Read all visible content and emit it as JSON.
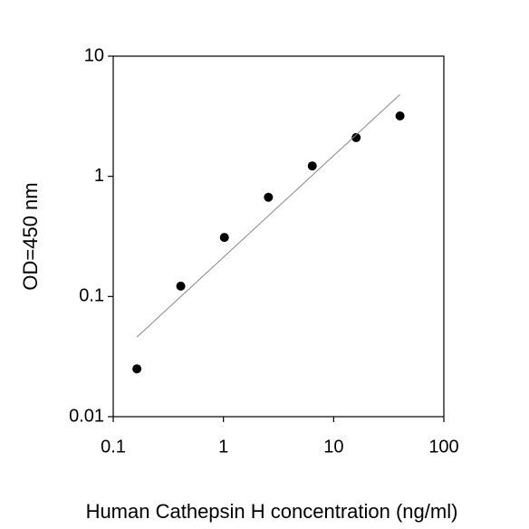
{
  "chart_data": {
    "type": "scatter",
    "xlabel": "Human Cathepsin H concentration (ng/ml)",
    "ylabel": "OD=450 nm",
    "xscale": "log",
    "yscale": "log",
    "xlim": [
      0.1,
      100
    ],
    "ylim": [
      0.01,
      10
    ],
    "xticks": [
      0.1,
      1,
      10,
      100
    ],
    "yticks": [
      0.01,
      0.1,
      1,
      10
    ],
    "series": [
      {
        "type": "scatter",
        "color": "#000000",
        "x": [
          0.164,
          0.41,
          1.02,
          2.56,
          6.4,
          16,
          40
        ],
        "values": [
          0.025,
          0.122,
          0.31,
          0.67,
          1.22,
          2.1,
          3.18
        ]
      },
      {
        "type": "line",
        "color": "#888888",
        "x": [
          0.164,
          40
        ],
        "values": [
          0.046,
          4.8
        ]
      }
    ]
  }
}
